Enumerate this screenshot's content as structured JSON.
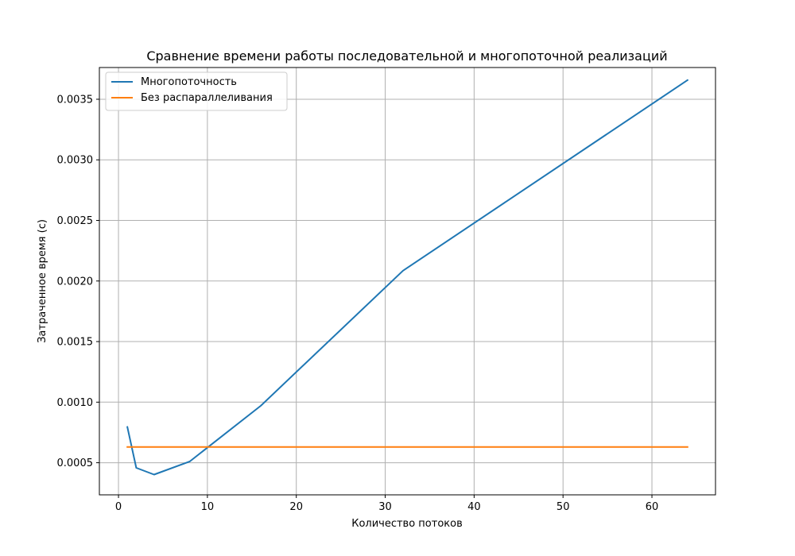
{
  "chart_data": {
    "type": "line",
    "title": "Сравнение времени работы последовательной и многопоточной реализаций",
    "xlabel": "Количество потоков",
    "ylabel": "Затраченное время (с)",
    "xlim": [
      -2.15,
      67.15
    ],
    "ylim": [
      0.000235,
      0.003762
    ],
    "xticks": [
      0,
      10,
      20,
      30,
      40,
      50,
      60
    ],
    "xtick_labels": [
      "0",
      "10",
      "20",
      "30",
      "40",
      "50",
      "60"
    ],
    "yticks": [
      0.0005,
      0.001,
      0.0015,
      0.002,
      0.0025,
      0.003,
      0.0035
    ],
    "ytick_labels": [
      "0.0005",
      "0.0010",
      "0.0015",
      "0.0020",
      "0.0025",
      "0.0030",
      "0.0035"
    ],
    "grid": true,
    "legend_position": "top-left",
    "series": [
      {
        "name": "Многопоточность",
        "color": "#1f77b4",
        "x": [
          1,
          2,
          4,
          8,
          16,
          32,
          64
        ],
        "y": [
          0.000795,
          0.000458,
          0.000402,
          0.00051,
          0.00097,
          0.002085,
          0.003658
        ]
      },
      {
        "name": "Без распараллеливания",
        "color": "#ff7f0e",
        "x": [
          1,
          2,
          4,
          8,
          16,
          32,
          64
        ],
        "y": [
          0.00063,
          0.00063,
          0.00063,
          0.00063,
          0.00063,
          0.00063,
          0.00063
        ]
      }
    ]
  }
}
